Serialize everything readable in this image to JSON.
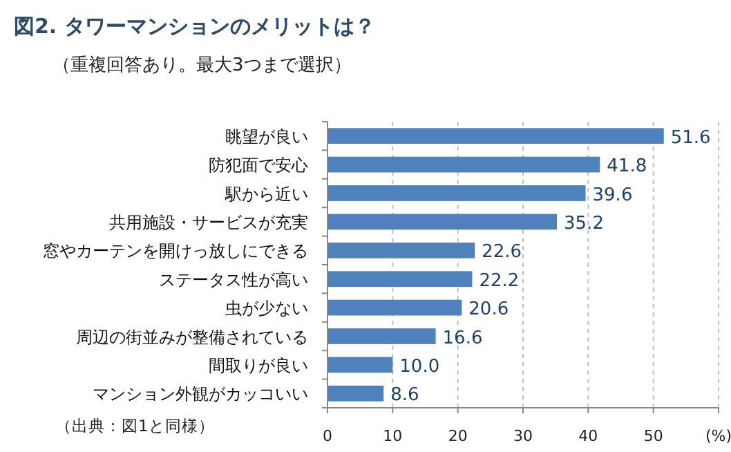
{
  "chart_data": {
    "type": "bar",
    "orientation": "horizontal",
    "title": "図2. タワーマンションのメリットは？",
    "subtitle": "（重複回答あり。最大3つまで選択）",
    "annotations": [
      "（出典：図1と同様）"
    ],
    "categories": [
      "眺望が良い",
      "防犯面で安心",
      "駅から近い",
      "共用施設・サービスが充実",
      "窓やカーテンを開けっ放しにできる",
      "ステータス性が高い",
      "虫が少ない",
      "周辺の街並みが整備されている",
      "間取りが良い",
      "マンション外観がカッコいい"
    ],
    "values": [
      51.6,
      41.8,
      39.6,
      35.2,
      22.6,
      22.2,
      20.6,
      16.6,
      10.0,
      8.6
    ],
    "color": "#4f81bd",
    "xlim": [
      0,
      60
    ],
    "xticks": [
      0,
      10,
      20,
      30,
      40,
      50,
      {
        "value": 60,
        "label": "(%)"
      }
    ],
    "grid": "x",
    "value_labels": [
      "51.6",
      "41.8",
      "39.6",
      "35.2",
      "22.6",
      "22.2",
      "20.6",
      "16.6",
      "10.0",
      "8.6"
    ]
  }
}
